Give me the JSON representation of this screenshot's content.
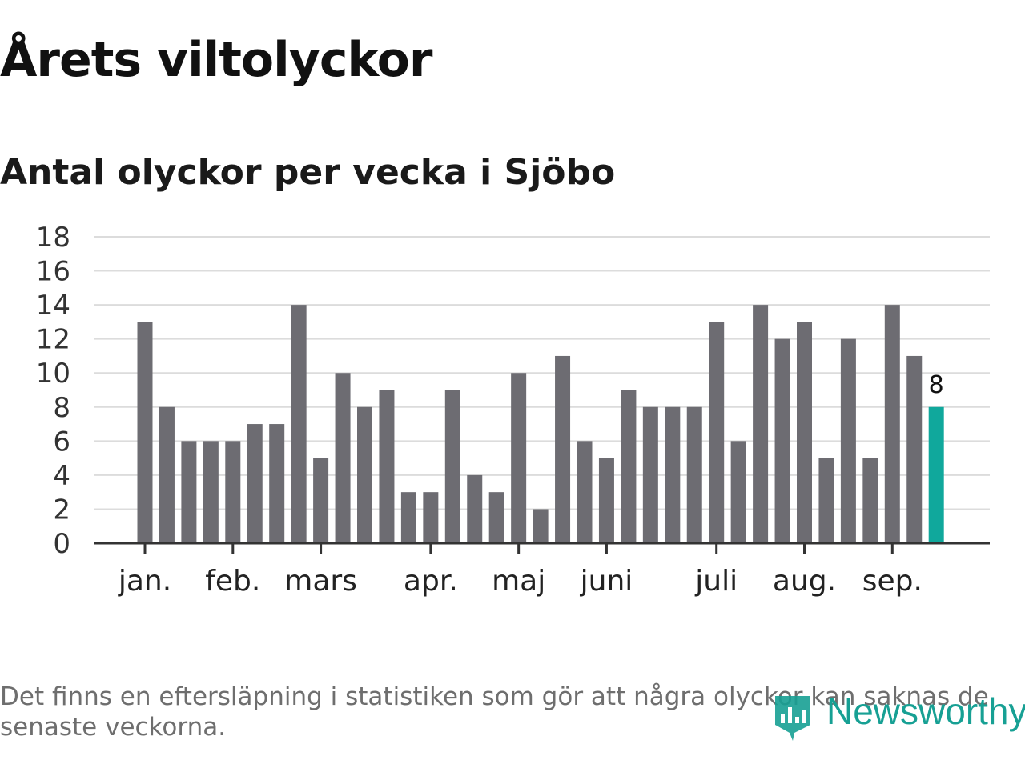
{
  "title": "Årets viltolyckor",
  "subtitle": "Antal olyckor per vecka i Sjöbo",
  "footnote": "Det finns en eftersläpning i statistiken som gör att några olyckor kan saknas de senaste veckorna.",
  "logo": {
    "text": "Newsworthy"
  },
  "colors": {
    "bar": "#6d6c72",
    "highlight": "#10a89c",
    "grid": "#dcdcdc",
    "axis": "#333333"
  },
  "chart_data": {
    "type": "bar",
    "title": "Antal olyckor per vecka i Sjöbo",
    "xlabel": "",
    "ylabel": "",
    "ylim": [
      0,
      18
    ],
    "yticks": [
      0,
      2,
      4,
      6,
      8,
      10,
      12,
      14,
      16,
      18
    ],
    "grid": true,
    "values": [
      13,
      8,
      6,
      6,
      6,
      7,
      7,
      14,
      5,
      10,
      8,
      9,
      3,
      3,
      9,
      4,
      3,
      10,
      2,
      11,
      6,
      5,
      9,
      8,
      8,
      8,
      13,
      6,
      14,
      12,
      13,
      5,
      12,
      5,
      14,
      11,
      8
    ],
    "highlight_index": 36,
    "highlight_label": "8",
    "month_labels": [
      {
        "label": "jan.",
        "week_index": 0
      },
      {
        "label": "feb.",
        "week_index": 4
      },
      {
        "label": "mars",
        "week_index": 8
      },
      {
        "label": "apr.",
        "week_index": 13
      },
      {
        "label": "maj",
        "week_index": 17
      },
      {
        "label": "juni",
        "week_index": 21
      },
      {
        "label": "juli",
        "week_index": 26
      },
      {
        "label": "aug.",
        "week_index": 30
      },
      {
        "label": "sep.",
        "week_index": 34
      }
    ]
  }
}
